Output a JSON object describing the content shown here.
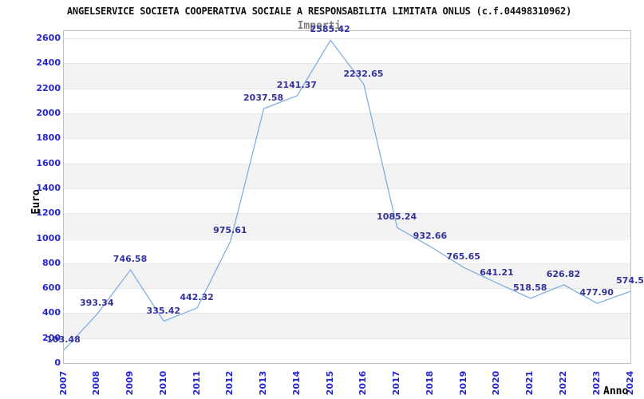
{
  "chart_data": {
    "type": "line",
    "title": "ANGELSERVICE SOCIETA COOPERATIVA SOCIALE A RESPONSABILITA LIMITATA ONLUS (c.f.04498310962)",
    "subtitle": "Importi",
    "xlabel": "Anno",
    "ylabel": "Euro",
    "categories": [
      "2007",
      "2008",
      "2009",
      "2010",
      "2011",
      "2012",
      "2013",
      "2014",
      "2015",
      "2016",
      "2017",
      "2018",
      "2019",
      "2020",
      "2021",
      "2022",
      "2023",
      "2024"
    ],
    "values": [
      103.48,
      393.34,
      746.58,
      335.42,
      442.32,
      975.61,
      2037.58,
      2141.37,
      2585.42,
      2232.65,
      1085.24,
      932.66,
      765.65,
      641.21,
      518.58,
      626.82,
      477.9,
      574.5
    ],
    "point_labels": [
      "103.48",
      "393.34",
      "746.58",
      "335.42",
      "442.32",
      "975.61",
      "2037.58",
      "2141.37",
      "2585.42",
      "2232.65",
      "1085.24",
      "932.66",
      "765.65",
      "641.21",
      "518.58",
      "626.82",
      "477.90",
      "574.5"
    ],
    "ylim": [
      0,
      2600
    ],
    "ytick_step": 200,
    "ytick_labels": [
      "0",
      "200",
      "400",
      "600",
      "800",
      "1000",
      "1200",
      "1400",
      "1600",
      "1800",
      "2000",
      "2200",
      "2400",
      "2600"
    ],
    "grid": "horizontal gridlines with alternating gray bands every 200",
    "legend": null,
    "colors": {
      "line": "#7fafe0",
      "point_label": "#333399",
      "tick_label": "#2626cf",
      "band_gray": "#f3f3f3",
      "gridline": "#e7e7e7",
      "plot_border": "#c0c0c0",
      "title": "#111111",
      "subtitle": "#808080",
      "axis_title": "#000000"
    }
  }
}
